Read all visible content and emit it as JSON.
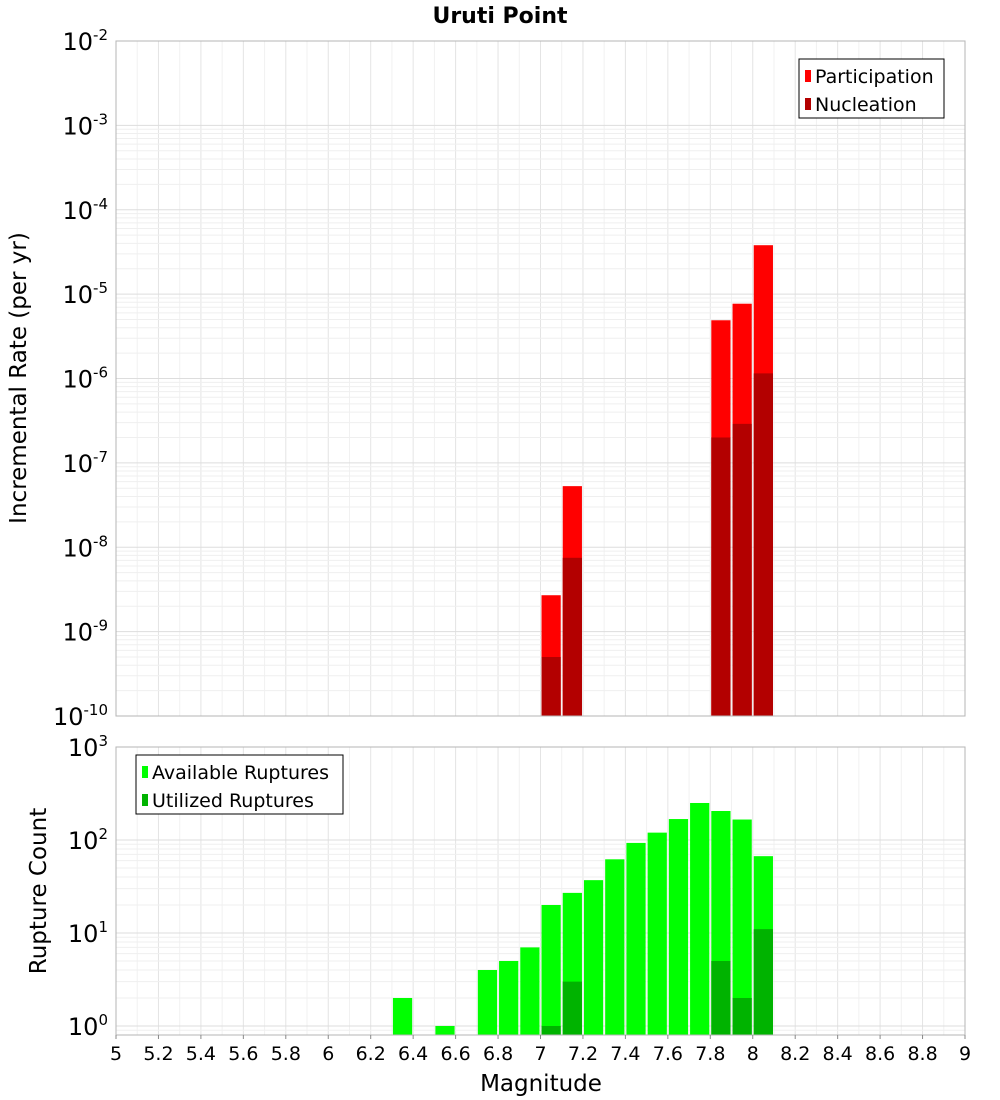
{
  "chart_data": [
    {
      "type": "bar",
      "title": "Uruti Point",
      "xlabel": "",
      "ylabel": "Incremental Rate (per yr)",
      "yscale": "log",
      "ylim_exp": [
        -10,
        -2
      ],
      "xlim": [
        5,
        9
      ],
      "grid": true,
      "legend_position": "top-right",
      "series": [
        {
          "name": "Participation",
          "color": "#ff0000",
          "x": [
            7.05,
            7.15,
            7.85,
            7.95,
            8.05
          ],
          "values": [
            2.7e-09,
            5.3e-08,
            4.9e-06,
            7.7e-06,
            3.8e-05
          ]
        },
        {
          "name": "Nucleation",
          "color": "#b30000",
          "x": [
            7.05,
            7.15,
            7.85,
            7.95,
            8.05
          ],
          "values": [
            5e-10,
            7.5e-09,
            2e-07,
            2.9e-07,
            1.15e-06
          ]
        }
      ]
    },
    {
      "type": "bar",
      "title": "",
      "xlabel": "Magnitude",
      "ylabel": "Rupture Count",
      "yscale": "log",
      "ylim_exp": [
        0,
        3
      ],
      "ymin": 0.8,
      "xlim": [
        5,
        9
      ],
      "xticks": [
        "5",
        "5.2",
        "5.4",
        "5.6",
        "5.8",
        "6",
        "6.2",
        "6.4",
        "6.6",
        "6.8",
        "7",
        "7.2",
        "7.4",
        "7.6",
        "7.8",
        "8",
        "8.2",
        "8.4",
        "8.6",
        "8.8",
        "9"
      ],
      "grid": true,
      "legend_position": "top-left",
      "series": [
        {
          "name": "Available Ruptures",
          "color": "#00ff00",
          "x": [
            6.35,
            6.55,
            6.75,
            6.85,
            6.95,
            7.05,
            7.15,
            7.25,
            7.35,
            7.45,
            7.55,
            7.65,
            7.75,
            7.85,
            7.95,
            8.05
          ],
          "values": [
            2,
            1,
            4,
            5,
            7,
            20,
            27,
            37,
            62,
            93,
            120,
            168,
            250,
            205,
            166,
            67
          ]
        },
        {
          "name": "Utilized Ruptures",
          "color": "#00b300",
          "x": [
            7.05,
            7.15,
            7.85,
            7.95,
            8.05
          ],
          "values": [
            1,
            3,
            5,
            2,
            11
          ]
        }
      ]
    }
  ]
}
